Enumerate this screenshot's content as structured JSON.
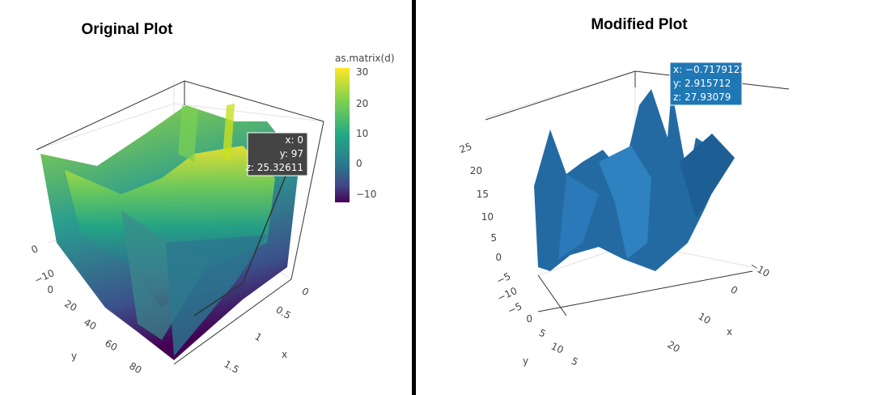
{
  "left": {
    "title": "Original Plot",
    "colorbar": {
      "title": "as.matrix(d)",
      "ticks": [
        "30",
        "20",
        "10",
        "0",
        "−10"
      ]
    },
    "tooltip": [
      "x: 0",
      "y: 97",
      "z: 25.32611"
    ],
    "z_ticks": [
      "0",
      "−10"
    ],
    "y_ticks": [
      "0",
      "20",
      "40",
      "60",
      "80"
    ],
    "y_label": "y",
    "x_ticks": [
      "0",
      "0.5",
      "1",
      "1.5"
    ],
    "x_label": "x"
  },
  "right": {
    "title": "Modified Plot",
    "tooltip": [
      "x: −0.7179123",
      "y: 2.915712",
      "z: 27.93079"
    ],
    "z_ticks": [
      "25",
      "20",
      "15",
      "10",
      "5",
      "0",
      "−5",
      "−10"
    ],
    "y_ticks": [
      "−5",
      "0",
      "5",
      "10",
      "5"
    ],
    "y_label": "y",
    "x_ticks": [
      "−10",
      "0",
      "10",
      "20"
    ],
    "x_label": "x"
  }
}
